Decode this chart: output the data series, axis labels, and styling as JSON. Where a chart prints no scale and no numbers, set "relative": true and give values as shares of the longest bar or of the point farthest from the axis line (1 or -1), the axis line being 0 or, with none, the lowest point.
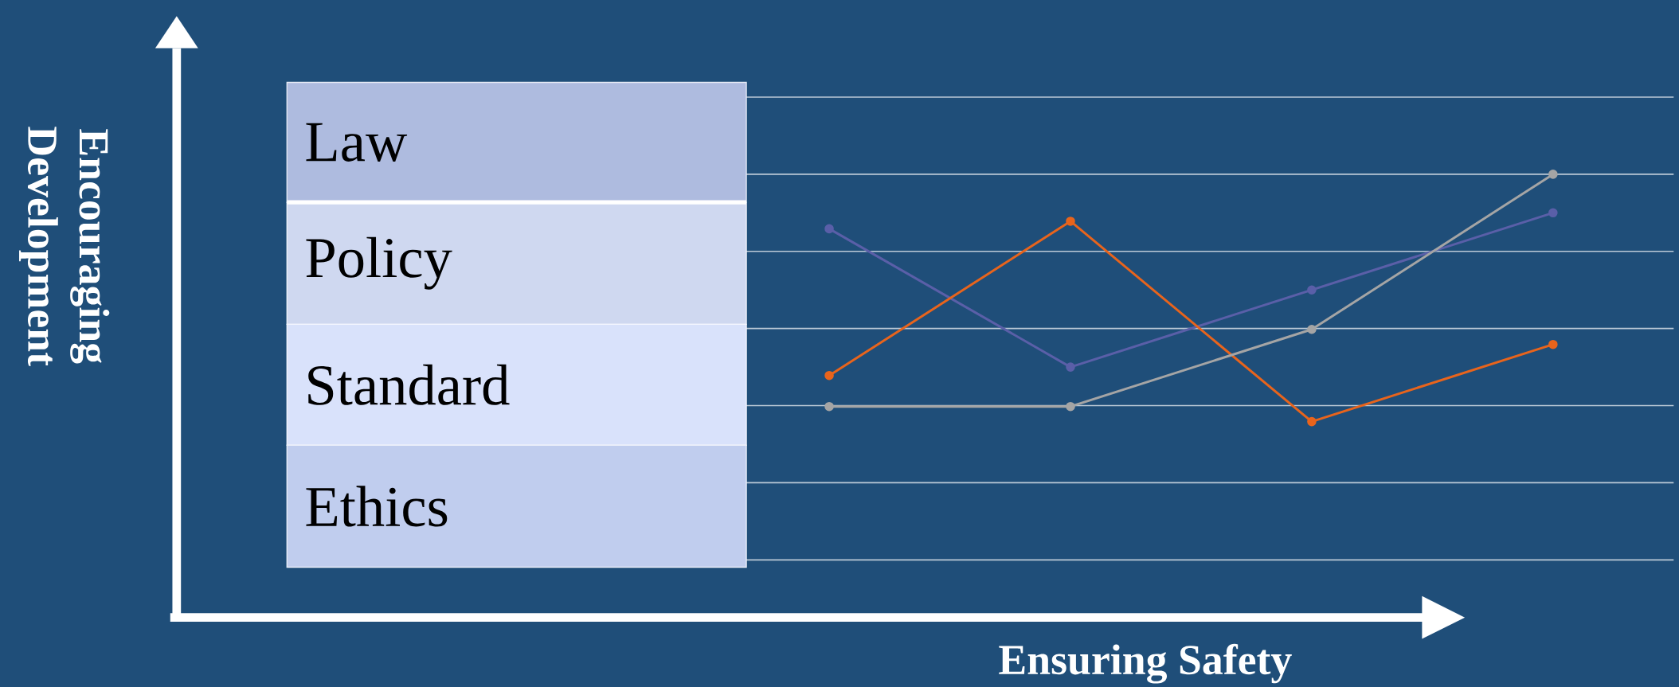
{
  "chart_data": {
    "type": "line",
    "relative": true,
    "xlabel": "Ensuring Safety",
    "categories": [
      null,
      null,
      null,
      null
    ],
    "series": [
      {
        "color": "#5a5fa8",
        "values": [
          0.877,
          0.565,
          0.739,
          0.913
        ]
      },
      {
        "color": "#e8641c",
        "values": [
          0.546,
          0.894,
          0.442,
          0.616
        ]
      },
      {
        "color": "#a5a5a5",
        "values": [
          0.476,
          0.476,
          0.65,
          1
        ]
      }
    ],
    "grid": "y",
    "legend": false,
    "marker": "circle",
    "line_style": "solid",
    "annotations": [
      "Law",
      "Policy",
      "Standard",
      "Ethics",
      "Encouraging Development"
    ]
  }
}
